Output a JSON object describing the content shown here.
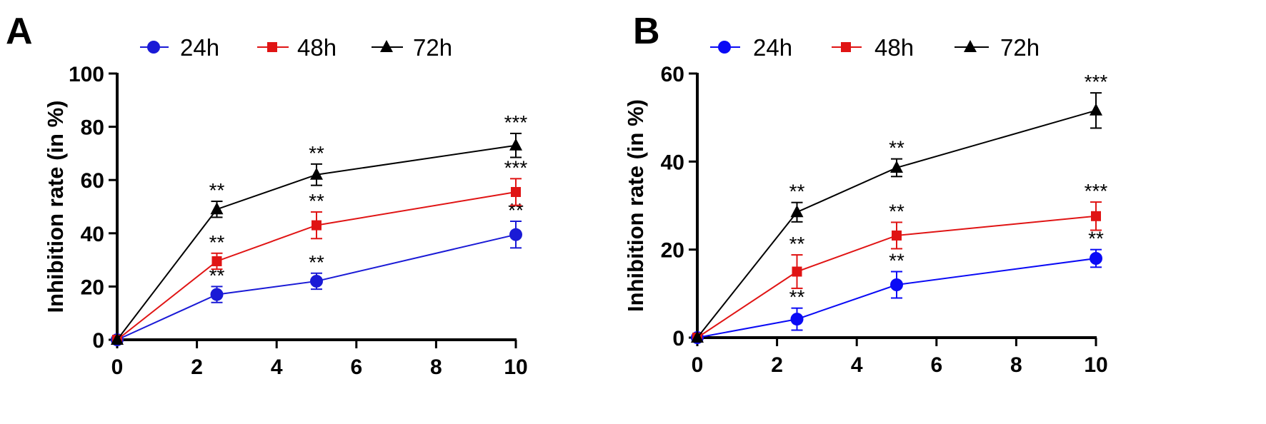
{
  "chart_data": [
    {
      "panel_label": "A",
      "type": "line",
      "title": "",
      "xlabel": "",
      "ylabel": "Inhibition rate (in %)",
      "xlim": [
        0,
        10
      ],
      "ylim": [
        0,
        100
      ],
      "xticks": [
        0,
        2,
        4,
        6,
        8,
        10
      ],
      "yticks": [
        0,
        20,
        40,
        60,
        80,
        100
      ],
      "legend_position": "top",
      "x": [
        0,
        2.5,
        5,
        10
      ],
      "series": [
        {
          "name": "24h",
          "color": "#1a1ad6",
          "marker": "circle",
          "values": [
            0,
            17,
            22,
            39.5
          ],
          "errors": [
            0,
            3,
            3,
            5
          ],
          "annotations": [
            "",
            "**",
            "**",
            "**"
          ]
        },
        {
          "name": "48h",
          "color": "#e01414",
          "marker": "square",
          "values": [
            0,
            29.5,
            43,
            55.5
          ],
          "errors": [
            0,
            3,
            5,
            5
          ],
          "annotations": [
            "",
            "**",
            "**",
            "***"
          ]
        },
        {
          "name": "72h",
          "color": "#000000",
          "marker": "triangle",
          "values": [
            0,
            49,
            62,
            73
          ],
          "errors": [
            0,
            3,
            4,
            4.5
          ],
          "annotations": [
            "",
            "**",
            "**",
            "***"
          ]
        }
      ]
    },
    {
      "panel_label": "B",
      "type": "line",
      "title": "",
      "xlabel": "",
      "ylabel": "Inhibition rate (in %)",
      "xlim": [
        0,
        10
      ],
      "ylim": [
        0,
        60
      ],
      "xticks": [
        0,
        2,
        4,
        6,
        8,
        10
      ],
      "yticks": [
        0,
        20,
        40,
        60
      ],
      "legend_position": "top",
      "x": [
        0,
        2.5,
        5,
        10
      ],
      "series": [
        {
          "name": "24h",
          "color": "#0a0af5",
          "marker": "circle",
          "values": [
            0,
            4.2,
            12,
            18
          ],
          "errors": [
            0,
            2.5,
            3,
            2
          ],
          "annotations": [
            "",
            "**",
            "**",
            "**"
          ]
        },
        {
          "name": "48h",
          "color": "#e01414",
          "marker": "square",
          "values": [
            0,
            15,
            23.2,
            27.6
          ],
          "errors": [
            0,
            3.8,
            3,
            3.2
          ],
          "annotations": [
            "",
            "**",
            "**",
            "***"
          ]
        },
        {
          "name": "72h",
          "color": "#000000",
          "marker": "triangle",
          "values": [
            0,
            28.5,
            38.6,
            51.6
          ],
          "errors": [
            0,
            2.2,
            2,
            4
          ],
          "annotations": [
            "",
            "**",
            "**",
            "***"
          ]
        }
      ]
    }
  ]
}
